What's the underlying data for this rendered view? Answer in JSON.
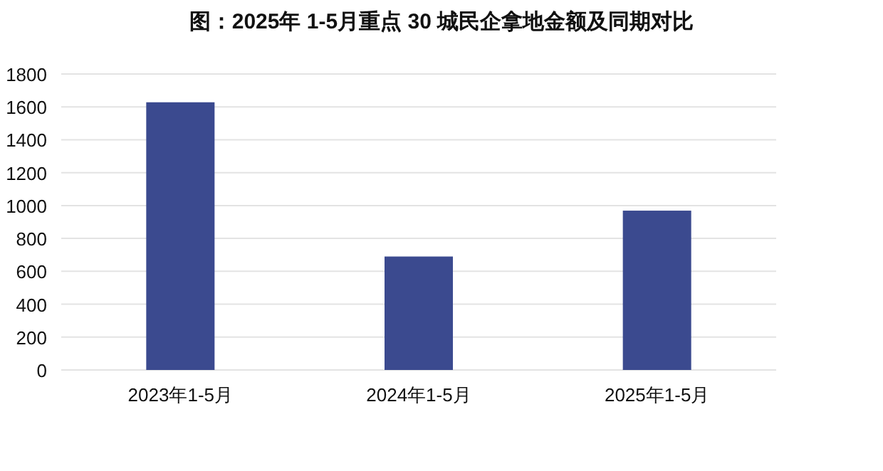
{
  "chart_data": {
    "type": "bar",
    "title": "图：2025年 1-5月重点 30 城民企拿地金额及同期对比",
    "categories": [
      "2023年1-5月",
      "2024年1-5月",
      "2025年1-5月"
    ],
    "values": [
      1628,
      690,
      969
    ],
    "color": "#3b4a8f",
    "ylim": [
      0,
      1800
    ],
    "yticks": [
      0,
      200,
      400,
      600,
      800,
      1000,
      1200,
      1400,
      1600,
      1800
    ],
    "grid": "y"
  }
}
